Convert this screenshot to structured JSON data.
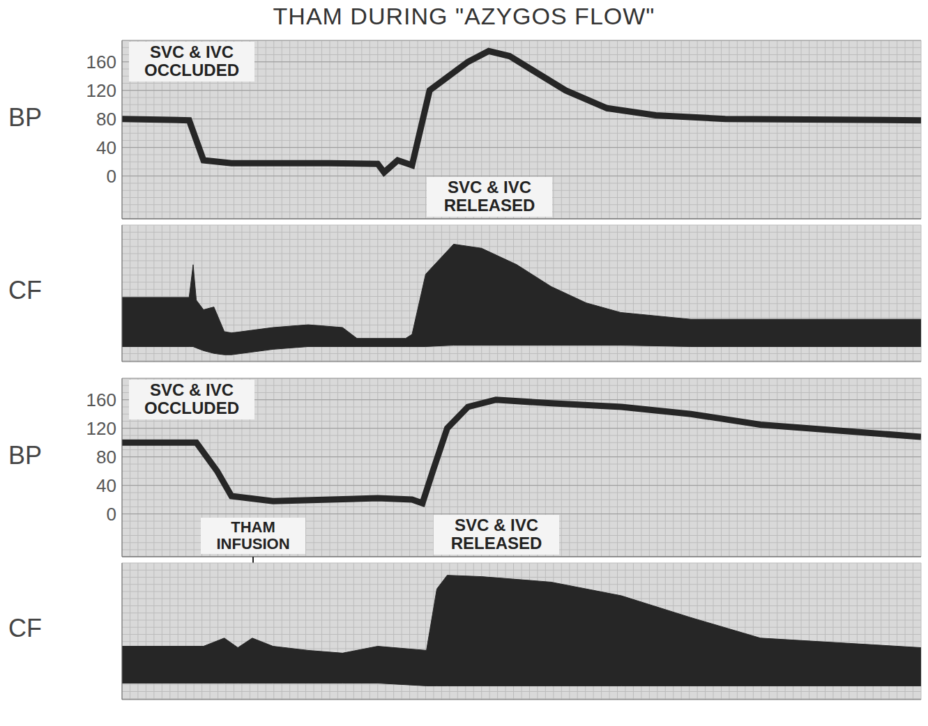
{
  "title": "THAM DURING \"AZYGOS FLOW\"",
  "chart_data": [
    {
      "type": "line",
      "y_label": "BP",
      "annotations": [
        "SVC & IVC OCCLUDED",
        "SVC & IVC RELEASED"
      ],
      "x": [
        0,
        8.4,
        10.2,
        13.7,
        18.9,
        25.9,
        32.0,
        32.8,
        34.5,
        36.3,
        38.5,
        43.3,
        45.9,
        48.5,
        55.5,
        60.7,
        66.8,
        75.5,
        100
      ],
      "values": [
        80,
        78,
        22,
        18,
        18,
        18,
        17,
        5,
        22,
        15,
        120,
        160,
        175,
        168,
        120,
        95,
        85,
        80,
        78
      ],
      "xlim": [
        0,
        100
      ],
      "ylim": [
        -60,
        190
      ],
      "yticks": [
        0,
        40,
        80,
        120,
        160
      ],
      "grid": true,
      "tick_labels": "y",
      "color": "#262626"
    },
    {
      "type": "area",
      "y_label": "CF",
      "x": [
        0,
        8.4,
        8.9,
        9.3,
        10.2,
        11.5,
        12.8,
        13.7,
        18.9,
        23.3,
        27.6,
        29.4,
        35.5,
        36.3,
        38.0,
        41.5,
        45.0,
        49.4,
        53.7,
        58.1,
        62.4,
        71.2,
        100
      ],
      "values": [
        47,
        47,
        71,
        45,
        38,
        40,
        22,
        21,
        25,
        27,
        25,
        17,
        17,
        20,
        64,
        86,
        83,
        71,
        55,
        43,
        36,
        31,
        31
      ],
      "lower": [
        11,
        11,
        11,
        10,
        8,
        6,
        5,
        5,
        9,
        11,
        11,
        11,
        11,
        11,
        11,
        12,
        12,
        12,
        12,
        12,
        12,
        11,
        11
      ],
      "xlim": [
        0,
        100
      ],
      "ylim": [
        0,
        100
      ],
      "grid": true,
      "tick_labels": false,
      "color": "#262626"
    },
    {
      "type": "line",
      "y_label": "BP",
      "annotations": [
        "SVC & IVC OCCLUDED",
        "THAM INFUSION",
        "SVC & IVC RELEASED"
      ],
      "x": [
        0,
        9.3,
        11.9,
        13.7,
        18.9,
        32.0,
        36.3,
        37.6,
        38.9,
        40.7,
        43.3,
        46.8,
        53.7,
        62.5,
        71.2,
        79.9,
        100
      ],
      "values": [
        100,
        100,
        60,
        25,
        18,
        22,
        20,
        15,
        60,
        120,
        150,
        160,
        155,
        150,
        140,
        125,
        108
      ],
      "xlim": [
        0,
        100
      ],
      "ylim": [
        -60,
        190
      ],
      "yticks": [
        0,
        40,
        80,
        120,
        160
      ],
      "grid": true,
      "tick_labels": "y",
      "color": "#262626"
    },
    {
      "type": "area",
      "y_label": "CF",
      "x": [
        0,
        10.2,
        12.8,
        14.5,
        16.3,
        18.9,
        23.3,
        27.6,
        32.0,
        38.1,
        39.4,
        40.7,
        45.0,
        53.7,
        62.5,
        71.2,
        79.9,
        100
      ],
      "values": [
        39,
        39,
        45,
        38,
        45,
        39,
        36,
        34,
        39,
        36,
        81,
        91,
        90,
        86,
        76,
        60,
        45,
        38
      ],
      "lower": [
        12,
        12,
        12,
        12,
        12,
        12,
        12,
        12,
        12,
        10,
        10,
        10,
        10,
        10,
        10,
        10,
        10,
        10
      ],
      "xlim": [
        0,
        100
      ],
      "ylim": [
        0,
        100
      ],
      "grid": true,
      "tick_labels": false,
      "color": "#262626"
    }
  ]
}
